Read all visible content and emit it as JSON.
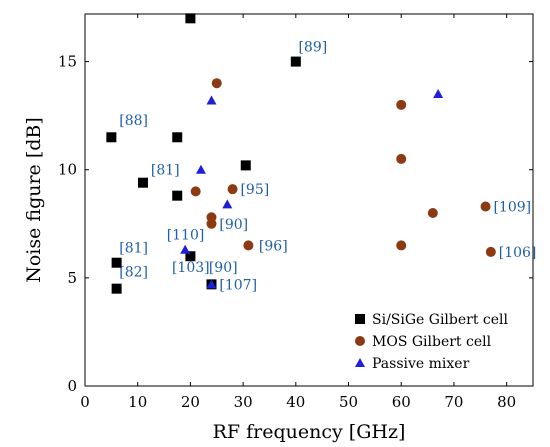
{
  "chart_data": {
    "type": "scatter",
    "title": "",
    "xlabel": "RF frequency [GHz]",
    "ylabel": "Noise figure [dB]",
    "xlim": [
      0,
      85
    ],
    "ylim": [
      0,
      17.2
    ],
    "xticks": [
      0,
      10,
      20,
      30,
      40,
      50,
      60,
      70,
      80
    ],
    "yticks": [
      0,
      5,
      10,
      15
    ],
    "grid": false,
    "legend_position": "bottom-right",
    "series": [
      {
        "name": "Si/SiGe Gilbert cell",
        "marker": "square",
        "color": "#000000",
        "points": [
          {
            "x": 20,
            "y": 17.0
          },
          {
            "x": 40,
            "y": 15.0
          },
          {
            "x": 5,
            "y": 11.5
          },
          {
            "x": 17.5,
            "y": 11.5
          },
          {
            "x": 30.5,
            "y": 10.2
          },
          {
            "x": 11,
            "y": 9.4
          },
          {
            "x": 17.5,
            "y": 8.8
          },
          {
            "x": 6,
            "y": 5.7
          },
          {
            "x": 20,
            "y": 6.0
          },
          {
            "x": 6,
            "y": 4.5
          },
          {
            "x": 24,
            "y": 4.7
          }
        ]
      },
      {
        "name": "MOS Gilbert cell",
        "marker": "circle",
        "color": "#8b3a13",
        "points": [
          {
            "x": 25,
            "y": 14.0
          },
          {
            "x": 60,
            "y": 13.0
          },
          {
            "x": 60,
            "y": 10.5
          },
          {
            "x": 21,
            "y": 9.0
          },
          {
            "x": 28,
            "y": 9.1
          },
          {
            "x": 66,
            "y": 8.0
          },
          {
            "x": 76,
            "y": 8.3
          },
          {
            "x": 24,
            "y": 7.8
          },
          {
            "x": 24,
            "y": 7.5
          },
          {
            "x": 31,
            "y": 6.5
          },
          {
            "x": 60,
            "y": 6.5
          },
          {
            "x": 77,
            "y": 6.2
          }
        ]
      },
      {
        "name": "Passive mixer",
        "marker": "triangle",
        "color": "#1f1fd6",
        "points": [
          {
            "x": 67,
            "y": 13.5
          },
          {
            "x": 24,
            "y": 13.2
          },
          {
            "x": 22,
            "y": 10.0
          },
          {
            "x": 27,
            "y": 8.4
          },
          {
            "x": 19,
            "y": 6.3
          },
          {
            "x": 24,
            "y": 4.7
          }
        ]
      }
    ],
    "annotations": [
      {
        "text": "[89]",
        "x": 40.5,
        "y": 15.7
      },
      {
        "text": "[88]",
        "x": 6.5,
        "y": 12.3
      },
      {
        "text": "[81]",
        "x": 12.5,
        "y": 10.0
      },
      {
        "text": "[95]",
        "x": 29.5,
        "y": 9.1
      },
      {
        "text": "[90]",
        "x": 25.5,
        "y": 7.5
      },
      {
        "text": "[110]",
        "x": 15.5,
        "y": 7.0
      },
      {
        "text": "[96]",
        "x": 33,
        "y": 6.5
      },
      {
        "text": "[81]",
        "x": 6.5,
        "y": 6.4
      },
      {
        "text": "[82]",
        "x": 6.5,
        "y": 5.3
      },
      {
        "text": "[103]",
        "x": 16.5,
        "y": 5.5
      },
      {
        "text": "[90]",
        "x": 23.5,
        "y": 5.5
      },
      {
        "text": "[107]",
        "x": 25.5,
        "y": 4.7
      },
      {
        "text": "[109]",
        "x": 77.5,
        "y": 8.3
      },
      {
        "text": "[106]",
        "x": 78.5,
        "y": 6.2
      }
    ]
  }
}
